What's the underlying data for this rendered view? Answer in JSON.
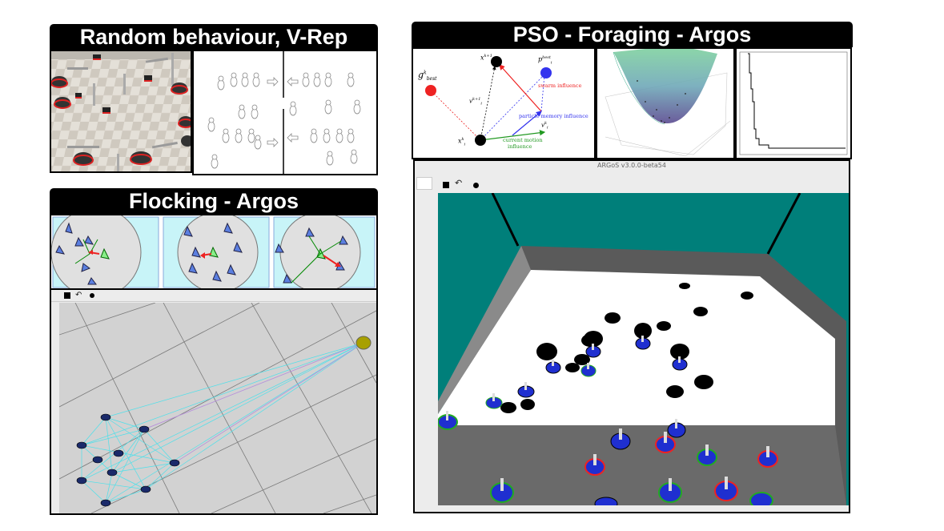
{
  "headers": {
    "random": "Random behaviour, V-Rep",
    "flocking": "Flocking - Argos",
    "pso": "PSO - Foraging - Argos"
  },
  "pso_diagram": {
    "g_best": "g",
    "g_best_sup": "k",
    "g_best_sub": "best",
    "x_next": "x",
    "x_next_sup": "k+1",
    "x_next_sub": "i",
    "p_best": "p",
    "p_best_sup": "best",
    "p_best_sub": "i",
    "v_next": "v",
    "v_next_sup": "k+1",
    "v_next_sub": "i",
    "v_cur": "v",
    "v_cur_sup": "k",
    "v_cur_sub": "i",
    "x_cur": "x",
    "x_cur_sup": "k",
    "x_cur_sub": "i",
    "swarm_influence": "swarm influence",
    "memory_influence": "particle memory influence",
    "current_motion": "current motion",
    "influence": "influence"
  },
  "argos_window_title": "ARGoS v3.0.0-beta54",
  "toolbar": {
    "stop_icon": "stop-icon",
    "reset_icon": "reset-icon",
    "record_icon": "record-icon"
  },
  "colors": {
    "header_bg": "#000000",
    "argos_wall": "#008b80",
    "arena_floor": "#ffffff",
    "arena_edge": "#5a5a5a",
    "robot_blue": "#1f2fd0",
    "swarm_red": "#e8202a",
    "memory_blue": "#3a3aee",
    "motion_green": "#2a9a2a",
    "flock_bg": "#c8f4f8",
    "flock_line": "#40e0e8"
  }
}
